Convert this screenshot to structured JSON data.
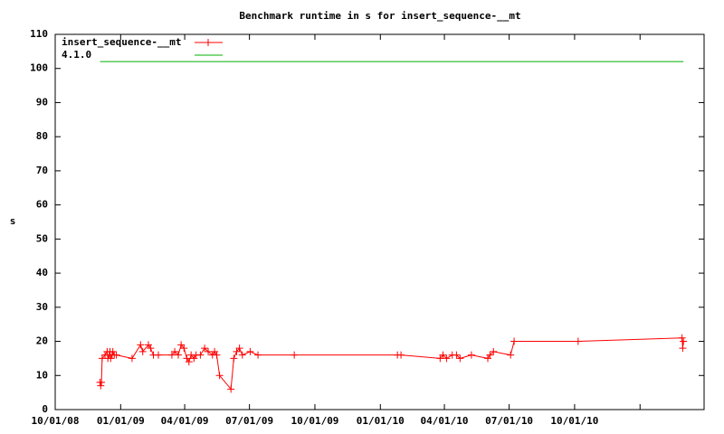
{
  "chart_data": {
    "type": "line",
    "title": "Benchmark runtime in s for insert_sequence-__mt",
    "y_label": "s",
    "xlim": [
      "2008-10-01",
      "2011-04-01"
    ],
    "xticks": [
      {
        "value": "2008-10-01",
        "label": "10/01/08"
      },
      {
        "value": "2009-01-01",
        "label": "01/01/09"
      },
      {
        "value": "2009-04-01",
        "label": "04/01/09"
      },
      {
        "value": "2009-07-01",
        "label": "07/01/09"
      },
      {
        "value": "2009-10-01",
        "label": "10/01/09"
      },
      {
        "value": "2010-01-01",
        "label": "01/01/10"
      },
      {
        "value": "2010-04-01",
        "label": "04/01/10"
      },
      {
        "value": "2010-07-01",
        "label": "07/01/10"
      },
      {
        "value": "2010-10-01",
        "label": "10/01/10"
      },
      {
        "value": "2011-01-01",
        "label": null
      }
    ],
    "ylim": [
      0,
      110
    ],
    "yticks": [
      0,
      10,
      20,
      30,
      40,
      50,
      60,
      70,
      80,
      90,
      100,
      110
    ],
    "legend": "top-left",
    "series": [
      {
        "name": "insert_sequence-__mt",
        "color": "#ff0000",
        "markers": true,
        "x": [
          "2008-12-03",
          "2008-12-04",
          "2008-12-05",
          "2008-12-06",
          "2008-12-10",
          "2008-12-13",
          "2008-12-14",
          "2008-12-16",
          "2008-12-17",
          "2008-12-18",
          "2008-12-20",
          "2008-12-21",
          "2008-12-23",
          "2008-12-26",
          "2009-01-17",
          "2009-01-29",
          "2009-02-01",
          "2009-02-09",
          "2009-02-12",
          "2009-02-16",
          "2009-02-23",
          "2009-03-14",
          "2009-03-18",
          "2009-03-23",
          "2009-03-27",
          "2009-03-31",
          "2009-04-04",
          "2009-04-07",
          "2009-04-10",
          "2009-04-14",
          "2009-04-17",
          "2009-04-23",
          "2009-04-29",
          "2009-05-04",
          "2009-05-10",
          "2009-05-13",
          "2009-05-16",
          "2009-05-20",
          "2009-06-05",
          "2009-06-09",
          "2009-06-13",
          "2009-06-17",
          "2009-06-21",
          "2009-07-02",
          "2009-07-13",
          "2009-09-02",
          "2010-01-25",
          "2010-01-30",
          "2010-03-26",
          "2010-03-30",
          "2010-04-04",
          "2010-04-12",
          "2010-04-18",
          "2010-04-23",
          "2010-05-09",
          "2010-06-01",
          "2010-06-04",
          "2010-06-09",
          "2010-07-03",
          "2010-07-08",
          "2010-10-06",
          "2011-03-01",
          "2011-03-02",
          "2011-03-03"
        ],
        "values": [
          8,
          7,
          8,
          15,
          16,
          17,
          15,
          16,
          17,
          15,
          16,
          17,
          16,
          16,
          15,
          19,
          17,
          19,
          18,
          16,
          16,
          16,
          17,
          16,
          19,
          18,
          15,
          14,
          16,
          15,
          16,
          16,
          18,
          17,
          16,
          17,
          16,
          10,
          6,
          15,
          17,
          18,
          16,
          17,
          16,
          16,
          16,
          16,
          15,
          16,
          15,
          16,
          16,
          15,
          16,
          15,
          16,
          17,
          16,
          20,
          20,
          21,
          18,
          20
        ]
      },
      {
        "name": "4.1.0",
        "color": "#00b000",
        "markers": false,
        "x": [
          "2008-12-03",
          "2011-03-03"
        ],
        "values": [
          102,
          102
        ]
      }
    ]
  }
}
